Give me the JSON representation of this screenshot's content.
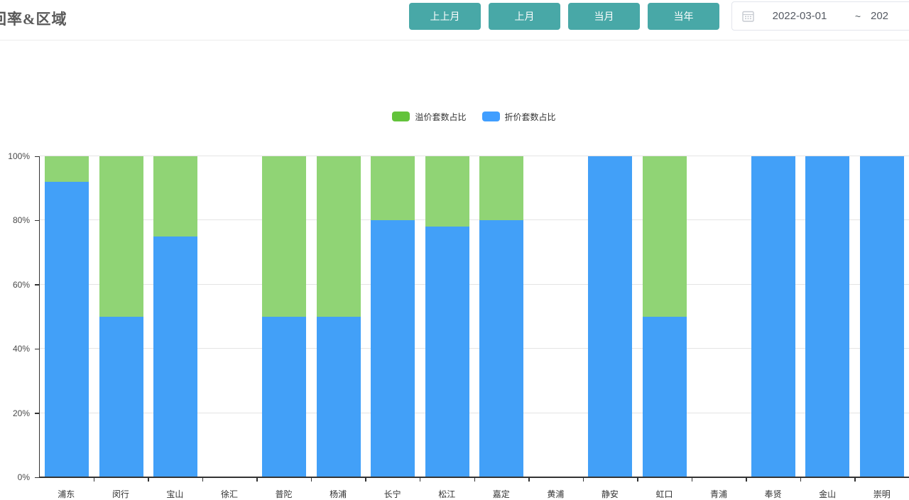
{
  "header": {
    "title": "回率&区域",
    "buttons": [
      {
        "label": "上上月"
      },
      {
        "label": "上月"
      },
      {
        "label": "当月"
      },
      {
        "label": "当年"
      }
    ],
    "button_color": "#48a8a7",
    "date_range": {
      "start": "2022-03-01",
      "separator": "~",
      "end_visible": "202"
    }
  },
  "chart_data": {
    "type": "bar",
    "stacked": true,
    "categories": [
      "浦东",
      "闵行",
      "宝山",
      "徐汇",
      "普陀",
      "杨浦",
      "长宁",
      "松江",
      "嘉定",
      "黄浦",
      "静安",
      "虹口",
      "青浦",
      "奉贤",
      "金山",
      "崇明"
    ],
    "series": [
      {
        "name": "溢价套数占比",
        "legend_color": "#63c33b",
        "bar_color": "#90d475",
        "stack_position": "top",
        "values": [
          8,
          50,
          25,
          0,
          50,
          50,
          20,
          22,
          20,
          0,
          0,
          50,
          0,
          0,
          0,
          0
        ]
      },
      {
        "name": "折价套数占比",
        "legend_color": "#409eff",
        "bar_color": "#42a0f8",
        "stack_position": "bottom",
        "values": [
          92,
          50,
          75,
          0,
          50,
          50,
          80,
          78,
          80,
          0,
          100,
          50,
          0,
          100,
          100,
          100
        ]
      }
    ],
    "ylabel": "",
    "xlabel": "",
    "ylim": [
      0,
      100
    ],
    "y_ticks": [
      "0%",
      "20%",
      "40%",
      "60%",
      "80%",
      "100%"
    ],
    "y_tick_step": 20,
    "grid": true,
    "legend_position": "top-center"
  }
}
